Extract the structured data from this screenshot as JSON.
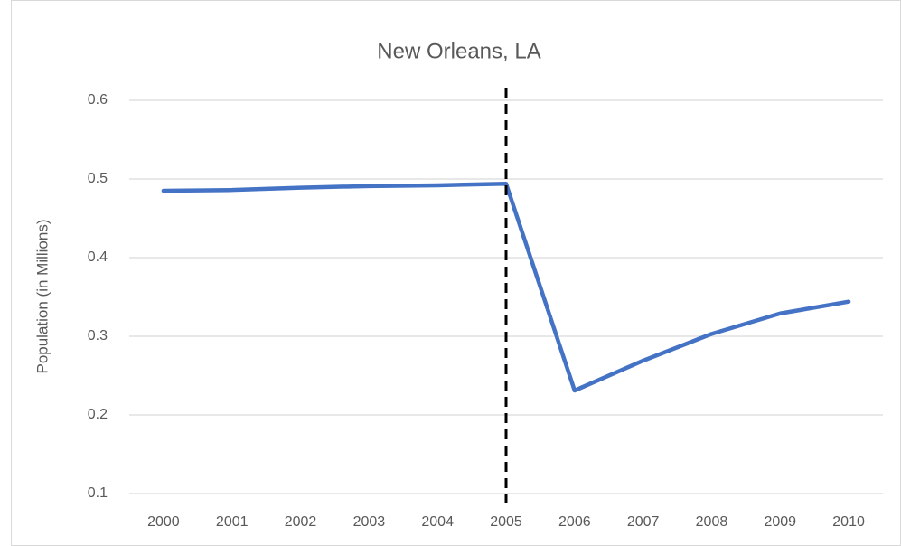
{
  "chart_data": {
    "type": "line",
    "title": "New Orleans, LA",
    "ylabel": "Population (in Millions)",
    "categories": [
      "2000",
      "2001",
      "2002",
      "2003",
      "2004",
      "2005",
      "2006",
      "2007",
      "2008",
      "2009",
      "2010"
    ],
    "series": [
      {
        "name": "New Orleans, LA",
        "color": "#4472c4",
        "values": [
          0.485,
          0.486,
          0.489,
          0.491,
          0.492,
          0.494,
          0.231,
          0.269,
          0.303,
          0.329,
          0.344
        ]
      }
    ],
    "ylim": [
      0.1,
      0.6
    ],
    "yticks": [
      0.1,
      0.2,
      0.3,
      0.4,
      0.5,
      0.6
    ],
    "grid": true,
    "legend": false,
    "vline": {
      "category": "2005",
      "color": "#000000",
      "dashed": true
    }
  }
}
